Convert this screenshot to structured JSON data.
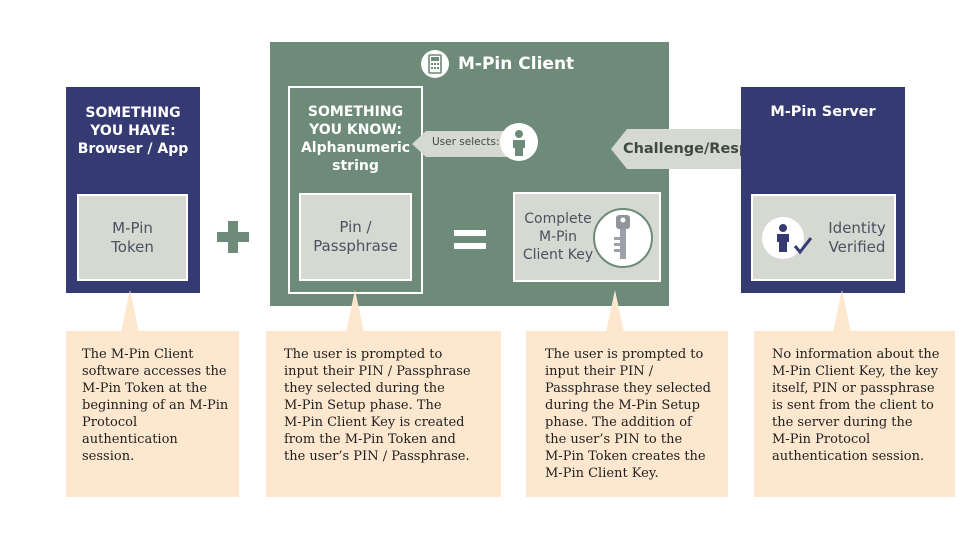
{
  "client": {
    "title": "M-Pin Client",
    "icon": "calculator-icon"
  },
  "have": {
    "title_line1": "SOMETHING",
    "title_line2": "YOU HAVE:",
    "title_line3": "Browser / App",
    "token_line1": "M-Pin",
    "token_line2": "Token"
  },
  "know": {
    "title_line1": "SOMETHING",
    "title_line2": "YOU KNOW:",
    "title_line3": "Alphanumeric",
    "title_line4": "string",
    "pin_line1": "Pin /",
    "pin_line2": "Passphrase"
  },
  "user_selects": {
    "label": "User selects:",
    "icon": "person-icon"
  },
  "complete": {
    "line1": "Complete",
    "line2": "M-Pin",
    "line3": "Client Key",
    "icon": "key-icon"
  },
  "challenge": {
    "label": "Challenge/Response"
  },
  "server": {
    "title": "M-Pin Server",
    "identity_line1": "Identity",
    "identity_line2": "Verified",
    "icon": "person-check-icon"
  },
  "operators": {
    "plus": "plus-icon",
    "equals": "equals-icon"
  },
  "notes": {
    "have": [
      "The M-Pin Client",
      "software accesses the",
      "M-Pin Token at the",
      "beginning of an M-Pin",
      "Protocol",
      "authentication",
      "session."
    ],
    "know": [
      "The user is prompted to",
      "input their PIN / Passphrase",
      "they selected during the",
      "M-Pin Setup phase. The",
      "M-Pin Client Key is created",
      "from the M-Pin Token and",
      "the user’s PIN / Passphrase."
    ],
    "complete": [
      "The user is prompted to",
      "input their PIN /",
      "Passphrase they selected",
      "during the M-Pin Setup",
      "phase. The addition of",
      "the user’s PIN to the",
      "M-Pin Token creates the",
      "M-Pin Client Key."
    ],
    "server": [
      "No information about the",
      "M-Pin Client Key, the key",
      "itself, PIN or passphrase",
      "is sent from the client to",
      "the server during the",
      "M-Pin Protocol",
      "authentication session."
    ]
  },
  "colors": {
    "navy": "#353a73",
    "green": "#6e8a78",
    "gray": "#d6d9d2",
    "peach": "#fde8cf"
  }
}
